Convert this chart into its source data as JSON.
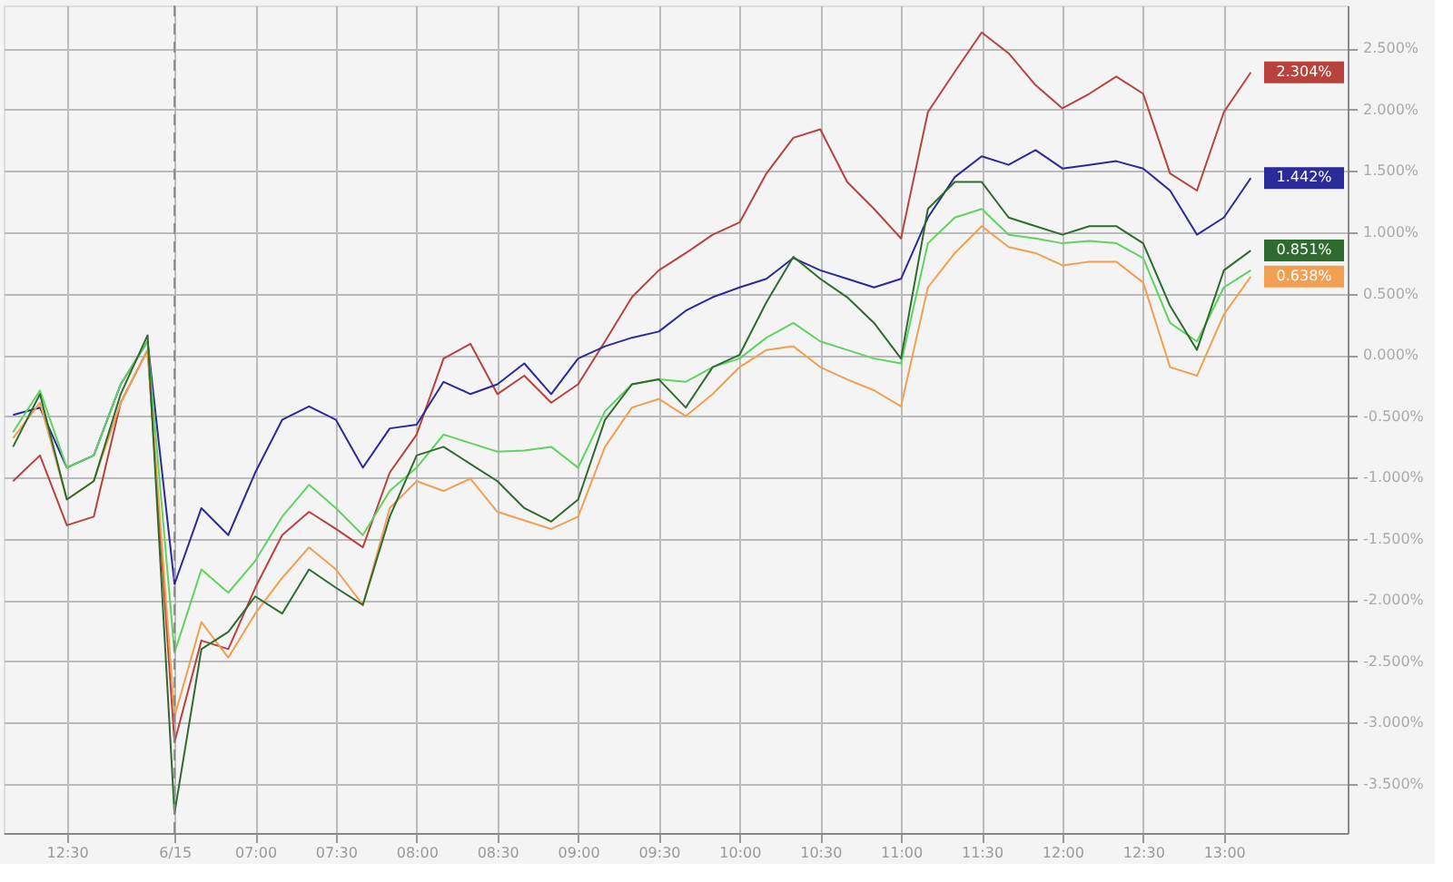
{
  "chart_data": {
    "type": "line",
    "categories": [
      null,
      null,
      "12:30",
      null,
      null,
      null,
      "6/15",
      null,
      null,
      "07:00",
      null,
      null,
      "07:30",
      null,
      null,
      "08:00",
      null,
      null,
      "08:30",
      null,
      null,
      "09:00",
      null,
      null,
      "09:30",
      null,
      null,
      "10:00",
      null,
      null,
      "10:30",
      null,
      null,
      "11:00",
      null,
      null,
      "11:30",
      null,
      null,
      "12:00",
      null,
      null,
      "12:30",
      null,
      null,
      "13:00",
      null
    ],
    "series": [
      {
        "color": "#b8423c",
        "values": [
          -1.03,
          -0.82,
          -1.39,
          -1.32,
          -0.39,
          0.04,
          -3.16,
          -2.33,
          -2.4,
          -1.9,
          -1.47,
          -1.28,
          -1.42,
          -1.57,
          -0.96,
          -0.65,
          -0.03,
          0.09,
          -0.32,
          -0.17,
          -0.39,
          -0.24,
          0.11,
          0.47,
          0.69,
          0.83,
          0.98,
          1.08,
          1.48,
          1.77,
          1.84,
          1.41,
          1.19,
          0.95,
          1.98,
          2.31,
          2.63,
          2.46,
          2.2,
          2.01,
          2.13,
          2.27,
          2.13,
          1.48,
          1.34,
          1.98,
          2.304
        ],
        "value_labels": [
          null,
          null,
          null,
          null,
          null,
          null,
          null,
          null,
          null,
          null,
          null,
          null,
          null,
          null,
          null,
          null,
          null,
          null,
          null,
          null,
          null,
          null,
          null,
          null,
          null,
          null,
          null,
          null,
          null,
          null,
          null,
          null,
          null,
          null,
          null,
          null,
          null,
          null,
          null,
          null,
          null,
          null,
          null,
          null,
          null,
          null,
          "2.304%"
        ]
      },
      {
        "color": "#2a2a9a",
        "values": [
          -0.49,
          -0.43,
          -0.92,
          -0.82,
          -0.24,
          0.11,
          -1.87,
          -1.25,
          -1.47,
          -0.96,
          -0.53,
          -0.42,
          -0.53,
          -0.92,
          -0.6,
          -0.57,
          -0.22,
          -0.32,
          -0.24,
          -0.07,
          -0.32,
          -0.03,
          0.07,
          0.14,
          0.19,
          0.36,
          0.47,
          0.55,
          0.62,
          0.79,
          0.69,
          0.62,
          0.55,
          0.62,
          1.12,
          1.45,
          1.62,
          1.55,
          1.67,
          1.52,
          1.55,
          1.58,
          1.52,
          1.34,
          0.98,
          1.12,
          1.442
        ],
        "value_labels": [
          null,
          null,
          null,
          null,
          null,
          null,
          null,
          null,
          null,
          null,
          null,
          null,
          null,
          null,
          null,
          null,
          null,
          null,
          null,
          null,
          null,
          null,
          null,
          null,
          null,
          null,
          null,
          null,
          null,
          null,
          null,
          null,
          null,
          null,
          null,
          null,
          null,
          null,
          null,
          null,
          null,
          null,
          null,
          null,
          null,
          null,
          "1.442%"
        ]
      },
      {
        "color": "#5fd35f",
        "values": [
          -0.63,
          -0.29,
          -0.92,
          -0.82,
          -0.24,
          0.11,
          -2.43,
          -1.75,
          -1.94,
          -1.68,
          -1.32,
          -1.06,
          -1.25,
          -1.47,
          -1.11,
          -0.92,
          -0.65,
          -0.72,
          -0.79,
          -0.78,
          -0.75,
          -0.92,
          -0.46,
          -0.24,
          -0.2,
          -0.22,
          -0.1,
          -0.03,
          0.14,
          0.26,
          0.11,
          0.04,
          -0.03,
          -0.07,
          0.91,
          1.12,
          1.19,
          0.98,
          0.95,
          0.91,
          0.93,
          0.91,
          0.79,
          0.26,
          0.11,
          0.55,
          0.69
        ]
      },
      {
        "color": "#f0a050",
        "values": [
          -0.68,
          -0.39,
          -1.18,
          -1.03,
          -0.39,
          0.04,
          -2.95,
          -2.18,
          -2.47,
          -2.11,
          -1.82,
          -1.57,
          -1.75,
          -2.04,
          -1.25,
          -1.03,
          -1.11,
          -1.01,
          -1.28,
          -1.35,
          -1.42,
          -1.32,
          -0.75,
          -0.43,
          -0.36,
          -0.5,
          -0.32,
          -0.1,
          0.04,
          0.07,
          -0.1,
          -0.2,
          -0.29,
          -0.42,
          0.55,
          0.83,
          1.05,
          0.88,
          0.83,
          0.73,
          0.76,
          0.76,
          0.59,
          -0.1,
          -0.17,
          0.33,
          0.638
        ],
        "value_labels": [
          null,
          null,
          null,
          null,
          null,
          null,
          null,
          null,
          null,
          null,
          null,
          null,
          null,
          null,
          null,
          null,
          null,
          null,
          null,
          null,
          null,
          null,
          null,
          null,
          null,
          null,
          null,
          null,
          null,
          null,
          null,
          null,
          null,
          null,
          null,
          null,
          null,
          null,
          null,
          null,
          null,
          null,
          null,
          null,
          null,
          null,
          "0.638%"
        ]
      },
      {
        "color": "#2e6b2e",
        "values": [
          -0.75,
          -0.32,
          -1.18,
          -1.03,
          -0.32,
          0.16,
          -3.74,
          -2.4,
          -2.26,
          -1.97,
          -2.11,
          -1.75,
          -1.9,
          -2.04,
          -1.32,
          -0.82,
          -0.75,
          -0.89,
          -1.03,
          -1.25,
          -1.36,
          -1.18,
          -0.53,
          -0.24,
          -0.2,
          -0.43,
          -0.1,
          0.0,
          0.43,
          0.8,
          0.62,
          0.47,
          0.26,
          -0.03,
          1.19,
          1.41,
          1.41,
          1.12,
          1.05,
          0.98,
          1.05,
          1.05,
          0.91,
          0.4,
          0.04,
          0.69,
          0.851
        ],
        "value_labels": [
          null,
          null,
          null,
          null,
          null,
          null,
          null,
          null,
          null,
          null,
          null,
          null,
          null,
          null,
          null,
          null,
          null,
          null,
          null,
          null,
          null,
          null,
          null,
          null,
          null,
          null,
          null,
          null,
          null,
          null,
          null,
          null,
          null,
          null,
          null,
          null,
          null,
          null,
          null,
          null,
          null,
          null,
          null,
          null,
          null,
          null,
          "0.851%"
        ]
      }
    ],
    "ylim": [
      -3.9,
      2.85
    ],
    "yticks": [
      {
        "value": -3.5,
        "label": "-3.500%"
      },
      {
        "value": -3.0,
        "label": "-3.000%"
      },
      {
        "value": -2.5,
        "label": "-2.500%"
      },
      {
        "value": -2.0,
        "label": "-2.000%"
      },
      {
        "value": -1.5,
        "label": "-1.500%"
      },
      {
        "value": -1.0,
        "label": "-1.000%"
      },
      {
        "value": -0.5,
        "label": "-0.500%"
      },
      {
        "value": 0.0,
        "label": "0.000%"
      },
      {
        "value": 0.5,
        "label": "0.500%"
      },
      {
        "value": 1.0,
        "label": "1.000%"
      },
      {
        "value": 1.5,
        "label": "1.500%"
      },
      {
        "value": 2.0,
        "label": "2.000%"
      },
      {
        "value": 2.5,
        "label": "2.500%"
      }
    ],
    "ref_lines": [
      {
        "axis": "x",
        "value": "6/15",
        "line_style": "dashed",
        "color": "#888888"
      }
    ],
    "grid": true,
    "marker": "none",
    "line_style": "solid"
  }
}
